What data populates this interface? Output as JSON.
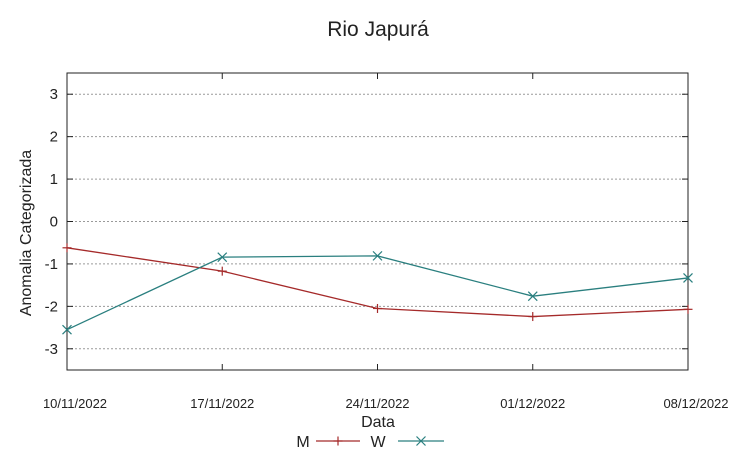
{
  "chart_data": {
    "type": "line",
    "title": "Rio Japurá",
    "xlabel": "Data",
    "ylabel": "Anomalia Categorizada",
    "categories": [
      "10/11/2022",
      "17/11/2022",
      "24/11/2022",
      "01/12/2022",
      "08/12/2022"
    ],
    "y_ticks": [
      "3",
      "2",
      "1",
      "0",
      "-1",
      "-2",
      "-3"
    ],
    "ylim": [
      -3.5,
      3.5
    ],
    "grid": true,
    "legend_position": "bottom-center",
    "series": [
      {
        "name": "M",
        "color": "#a52a2a",
        "marker": "plus",
        "values": [
          -0.62,
          -1.17,
          -2.05,
          -2.24,
          -2.07
        ]
      },
      {
        "name": "W",
        "color": "#2a7f7f",
        "marker": "cross",
        "values": [
          -2.55,
          -0.84,
          -0.81,
          -1.76,
          -1.33
        ]
      }
    ]
  }
}
